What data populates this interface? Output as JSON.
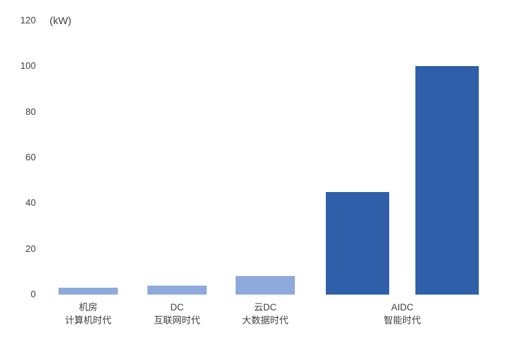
{
  "chart_data": {
    "type": "bar",
    "title": "",
    "unit_label": "(kW)",
    "xlabel": "",
    "ylabel": "",
    "ylim": [
      0,
      120
    ],
    "y_ticks": [
      0,
      20,
      40,
      60,
      80,
      100,
      120
    ],
    "grid": false,
    "legend": false,
    "categories": [
      "机房 计算机时代",
      "DC 互联网时代",
      "云DC 大数据时代",
      "AIDC 智能时代"
    ],
    "category_labels": [
      {
        "line1": "机房",
        "line2": "计算机时代"
      },
      {
        "line1": "DC",
        "line2": "互联网时代"
      },
      {
        "line1": "云DC",
        "line2": "大数据时代"
      },
      {
        "line1": "AIDC",
        "line2": "智能时代"
      }
    ],
    "bars": [
      {
        "category": "机房 计算机时代",
        "value": 3,
        "color": "#8EA9DB"
      },
      {
        "category": "DC 互联网时代",
        "value": 4,
        "color": "#8EA9DB"
      },
      {
        "category": "云DC 大数据时代",
        "value": 8,
        "color": "#8EA9DB"
      },
      {
        "category": "AIDC 智能时代",
        "value": 45,
        "color": "#2E5FA8"
      },
      {
        "category": "AIDC 智能时代",
        "value": 100,
        "color": "#2E5FA8"
      }
    ],
    "colors": {
      "light_blue": "#8EA9DB",
      "dark_blue": "#2E5FA8",
      "text": "#404040"
    }
  }
}
